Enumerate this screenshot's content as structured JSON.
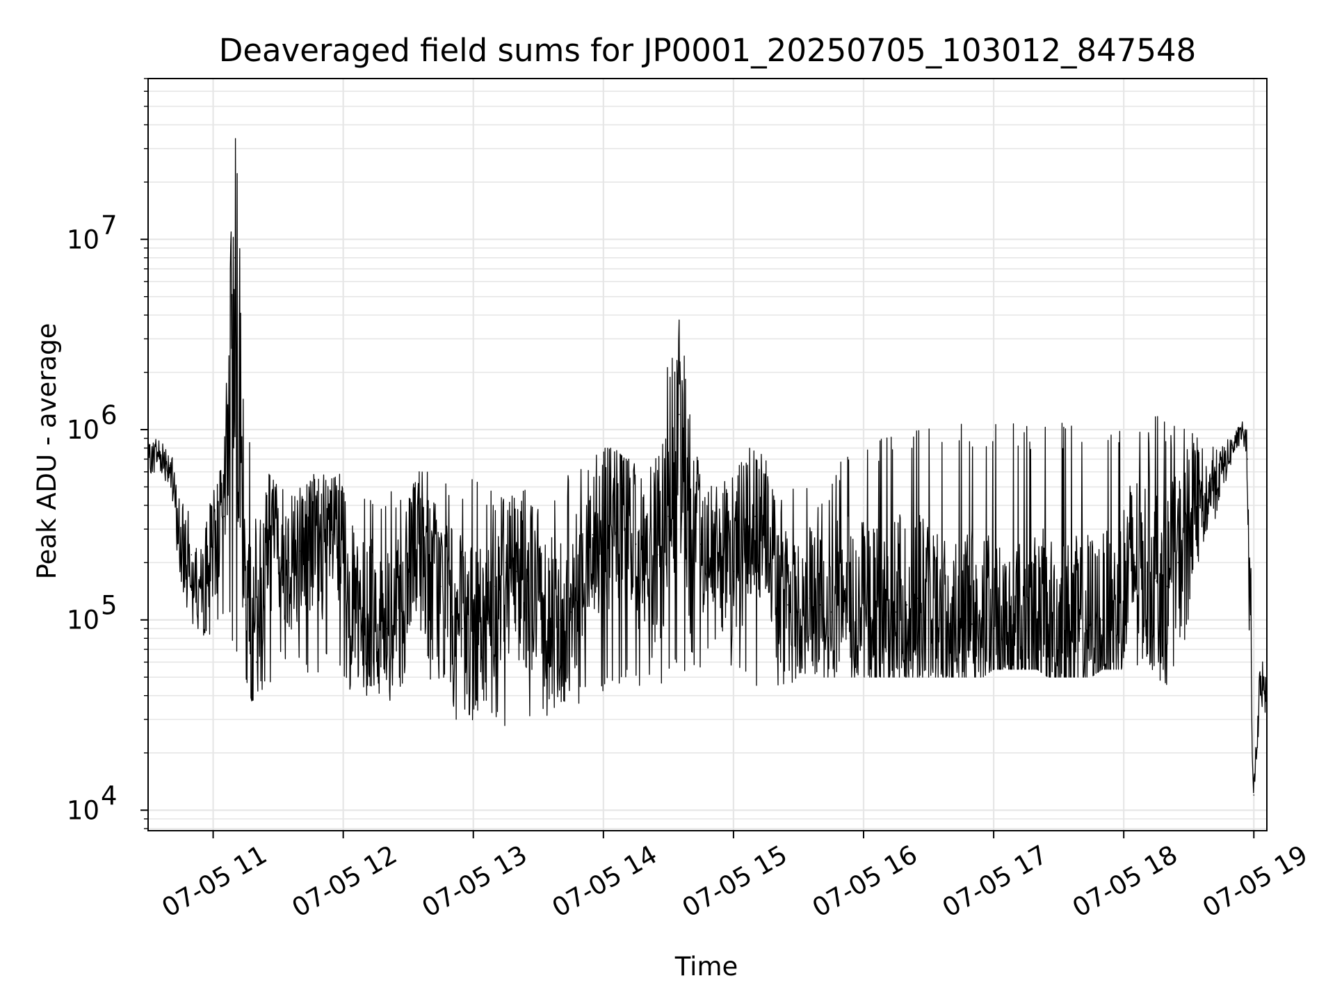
{
  "chart_data": {
    "type": "line",
    "title": "Deaveraged field sums for JP0001_20250705_103012_847548",
    "xlabel": "Time",
    "ylabel": "Peak ADU - average",
    "yscale": "log",
    "ylim": [
      7800,
      70000000
    ],
    "xlim": [
      "07-05 10:30",
      "07-05 19:06"
    ],
    "grid": {
      "major": true,
      "minor": true
    },
    "line_color": "#000000",
    "grid_color": "#e6e6e6",
    "x_ticks": [
      {
        "label": "07-05 11",
        "value": "07-05 11:00"
      },
      {
        "label": "07-05 12",
        "value": "07-05 12:00"
      },
      {
        "label": "07-05 13",
        "value": "07-05 13:00"
      },
      {
        "label": "07-05 14",
        "value": "07-05 14:00"
      },
      {
        "label": "07-05 15",
        "value": "07-05 15:00"
      },
      {
        "label": "07-05 16",
        "value": "07-05 16:00"
      },
      {
        "label": "07-05 17",
        "value": "07-05 17:00"
      },
      {
        "label": "07-05 18",
        "value": "07-05 18:00"
      },
      {
        "label": "07-05 19",
        "value": "07-05 19:00"
      }
    ],
    "y_ticks": [
      {
        "base": "10",
        "exp": "4",
        "value": 10000
      },
      {
        "base": "10",
        "exp": "5",
        "value": 100000
      },
      {
        "base": "10",
        "exp": "6",
        "value": 1000000
      },
      {
        "base": "10",
        "exp": "7",
        "value": 10000000
      }
    ],
    "series": [
      {
        "x": [
          "07-05 10:30",
          "07-05 10:35",
          "07-05 10:40",
          "07-05 10:45",
          "07-05 10:50",
          "07-05 10:55",
          "07-05 11:00",
          "07-05 11:05",
          "07-05 11:10",
          "07-05 11:15",
          "07-05 11:20",
          "07-05 11:25",
          "07-05 11:30",
          "07-05 11:35",
          "07-05 11:40",
          "07-05 11:45",
          "07-05 11:50",
          "07-05 11:55",
          "07-05 12:00",
          "07-05 12:05",
          "07-05 12:10",
          "07-05 12:15",
          "07-05 12:20",
          "07-05 12:25",
          "07-05 12:30",
          "07-05 12:35",
          "07-05 12:40",
          "07-05 12:45",
          "07-05 12:50",
          "07-05 12:55",
          "07-05 13:00",
          "07-05 13:05",
          "07-05 13:10",
          "07-05 13:15",
          "07-05 13:20",
          "07-05 13:25",
          "07-05 13:30",
          "07-05 13:35",
          "07-05 13:40",
          "07-05 13:45",
          "07-05 13:50",
          "07-05 13:55",
          "07-05 14:00",
          "07-05 14:05",
          "07-05 14:10",
          "07-05 14:15",
          "07-05 14:20",
          "07-05 14:25",
          "07-05 14:30",
          "07-05 14:35",
          "07-05 14:40",
          "07-05 14:45",
          "07-05 14:50",
          "07-05 14:55",
          "07-05 15:00",
          "07-05 15:05",
          "07-05 15:10",
          "07-05 15:15",
          "07-05 15:20",
          "07-05 15:25",
          "07-05 15:30",
          "07-05 15:35",
          "07-05 15:40",
          "07-05 15:45",
          "07-05 15:50",
          "07-05 15:55",
          "07-05 16:00",
          "07-05 16:05",
          "07-05 16:10",
          "07-05 16:15",
          "07-05 16:20",
          "07-05 16:25",
          "07-05 16:30",
          "07-05 16:35",
          "07-05 16:40",
          "07-05 16:45",
          "07-05 16:50",
          "07-05 16:55",
          "07-05 17:00",
          "07-05 17:05",
          "07-05 17:10",
          "07-05 17:15",
          "07-05 17:20",
          "07-05 17:25",
          "07-05 17:30",
          "07-05 17:35",
          "07-05 17:40",
          "07-05 17:45",
          "07-05 17:50",
          "07-05 17:55",
          "07-05 18:00",
          "07-05 18:05",
          "07-05 18:10",
          "07-05 18:15",
          "07-05 18:20",
          "07-05 18:25",
          "07-05 18:30",
          "07-05 18:35",
          "07-05 18:40",
          "07-05 18:45",
          "07-05 18:50",
          "07-05 18:55",
          "07-05 18:57",
          "07-05 18:58",
          "07-05 19:00",
          "07-05 19:03",
          "07-05 19:06"
        ],
        "values": [
          700000,
          750000,
          650000,
          250000,
          220000,
          130000,
          240000,
          350000,
          8000000,
          120000,
          60000,
          300000,
          250000,
          200000,
          230000,
          260000,
          250000,
          280000,
          220000,
          120000,
          100000,
          110000,
          90000,
          100000,
          150000,
          250000,
          180000,
          150000,
          110000,
          90000,
          80000,
          90000,
          150000,
          200000,
          180000,
          160000,
          140000,
          120000,
          100000,
          110000,
          200000,
          280000,
          300000,
          350000,
          300000,
          250000,
          200000,
          220000,
          350000,
          1200000,
          300000,
          250000,
          250000,
          200000,
          180000,
          300000,
          350000,
          400000,
          150000,
          120000,
          110000,
          130000,
          120000,
          110000,
          150000,
          130000,
          120000,
          110000,
          100000,
          110000,
          120000,
          130000,
          110000,
          100000,
          90000,
          100000,
          95000,
          100000,
          90000,
          85000,
          90000,
          88000,
          100000,
          95000,
          90000,
          85000,
          90000,
          95000,
          100000,
          90000,
          150000,
          200000,
          180000,
          160000,
          150000,
          200000,
          300000,
          400000,
          500000,
          600000,
          800000,
          1000000,
          700000,
          100000,
          12000,
          50000,
          40000
        ],
        "upper": [
          1000000,
          1000000,
          800000,
          500000,
          400000,
          300000,
          500000,
          700000,
          45000000,
          1800000,
          300000,
          600000,
          500000,
          500000,
          600000,
          600000,
          600000,
          550000,
          600000,
          450000,
          500000,
          500000,
          500000,
          500000,
          550000,
          600000,
          700000,
          600000,
          500000,
          550000,
          550000,
          550000,
          550000,
          500000,
          500000,
          500000,
          450000,
          500000,
          600000,
          600000,
          700000,
          700000,
          800000,
          800000,
          700000,
          700000,
          700000,
          900000,
          2500000,
          3800000,
          1500000,
          600000,
          500000,
          600000,
          700000,
          800000,
          800000,
          700000,
          500000,
          500000,
          500000,
          500000,
          500000,
          600000,
          700000,
          800000,
          800000,
          900000,
          900000,
          1100000,
          1100000,
          1100000,
          1100000,
          1100000,
          1100000,
          1100000,
          1100000,
          1100000,
          1100000,
          1100000,
          1100000,
          1100000,
          1100000,
          1100000,
          1100000,
          1100000,
          1100000,
          1100000,
          1100000,
          1100000,
          1200000,
          1200000,
          1200000,
          1200000,
          1100000,
          1100000,
          1000000,
          1000000,
          900000,
          900000,
          1100000,
          1200000,
          1000000,
          700000,
          20000,
          70000,
          65000
        ],
        "lower": [
          600000,
          550000,
          400000,
          120000,
          100000,
          70000,
          80000,
          100000,
          70000,
          50000,
          30000,
          40000,
          60000,
          50000,
          55000,
          50000,
          50000,
          45000,
          40000,
          45000,
          40000,
          40000,
          35000,
          40000,
          40000,
          40000,
          35000,
          40000,
          30000,
          28000,
          30000,
          35000,
          30000,
          25000,
          30000,
          28000,
          27000,
          30000,
          35000,
          35000,
          35000,
          40000,
          40000,
          40000,
          40000,
          40000,
          45000,
          45000,
          45000,
          50000,
          50000,
          55000,
          60000,
          55000,
          50000,
          40000,
          40000,
          40000,
          45000,
          45000,
          45000,
          50000,
          50000,
          50000,
          50000,
          50000,
          50000,
          50000,
          50000,
          50000,
          50000,
          50000,
          50000,
          50000,
          50000,
          50000,
          50000,
          50000,
          55000,
          55000,
          55000,
          55000,
          55000,
          50000,
          50000,
          50000,
          50000,
          50000,
          55000,
          55000,
          55000,
          55000,
          55000,
          50000,
          45000,
          60000,
          90000,
          150000,
          300000,
          400000,
          700000,
          900000,
          400000,
          50000,
          11000,
          30000,
          30000
        ]
      }
    ]
  }
}
